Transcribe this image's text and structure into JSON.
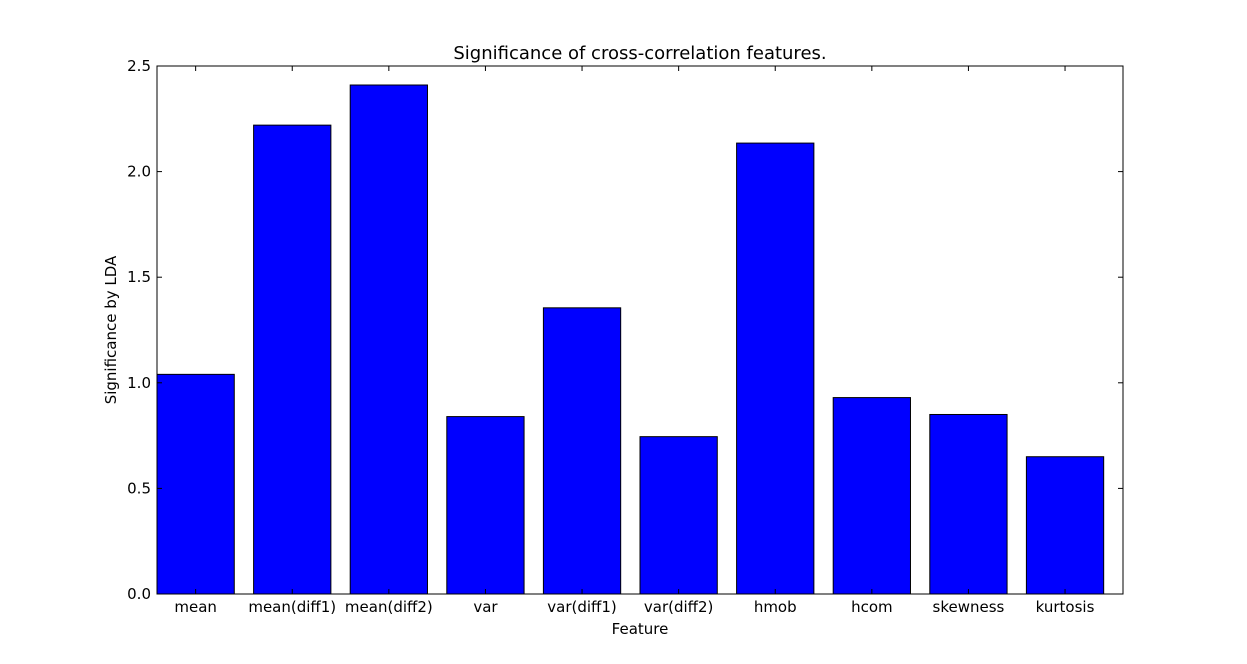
{
  "chart_data": {
    "type": "bar",
    "title": "Significance of cross-correlation features.",
    "xlabel": "Feature",
    "ylabel": "Significance by LDA",
    "categories": [
      "mean",
      "mean(diff1)",
      "mean(diff2)",
      "var",
      "var(diff1)",
      "var(diff2)",
      "hmob",
      "hcom",
      "skewness",
      "kurtosis"
    ],
    "values": [
      1.04,
      2.22,
      2.41,
      0.84,
      1.355,
      0.745,
      2.135,
      0.93,
      0.85,
      0.65
    ],
    "ylim": [
      0,
      2.5
    ],
    "yticks": [
      0.0,
      0.5,
      1.0,
      1.5,
      2.0,
      2.5
    ],
    "ytick_labels": [
      "0.0",
      "0.5",
      "1.0",
      "1.5",
      "2.0",
      "2.5"
    ],
    "grid": false,
    "legend": "none",
    "colors": {
      "bar_fill": "#0000ff",
      "bar_edge": "#000000",
      "axes": "#000000",
      "background": "#ffffff"
    }
  }
}
